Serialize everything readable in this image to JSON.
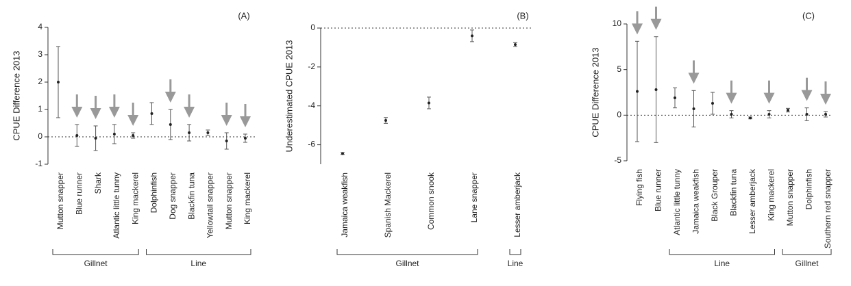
{
  "chart_data": [
    {
      "type": "errorpoint",
      "label": "(A)",
      "y_label": "CPUE Difference 2013",
      "categories": [
        "Mutton snapper",
        "Blue runner",
        "Shark",
        "Atlantic little tunny",
        "King mackerel",
        "Dolphinfish",
        "Dog snapper",
        "Blackfin tuna",
        "Yellowtail snapper",
        "Mutton snapper",
        "King mackerel"
      ],
      "values": [
        2.0,
        0.05,
        -0.05,
        0.1,
        0.05,
        0.85,
        0.45,
        0.15,
        0.15,
        -0.15,
        -0.05
      ],
      "errors": [
        1.3,
        0.4,
        0.45,
        0.35,
        0.1,
        0.4,
        0.55,
        0.3,
        0.1,
        0.3,
        0.15
      ],
      "arrows": [
        false,
        true,
        true,
        true,
        true,
        false,
        true,
        true,
        false,
        true,
        true
      ],
      "groups": [
        {
          "name": "Gillnet",
          "from": 0,
          "to": 4
        },
        {
          "name": "Line",
          "from": 5,
          "to": 10
        }
      ],
      "reference_line": 0,
      "color": "#222",
      "ylim": [
        -1,
        4
      ],
      "yticks": [
        -1,
        0,
        1,
        2,
        3,
        4
      ]
    },
    {
      "type": "errorpoint",
      "label": "(B)",
      "y_label": "Underestimated CPUE 2013",
      "categories": [
        "Jamaica weakfish",
        "Spanish Mackerel",
        "Common snook",
        "Lane snapper",
        "Lesser amberjack"
      ],
      "values": [
        -6.45,
        -4.75,
        -3.85,
        -0.4,
        -0.85
      ],
      "errors": [
        0.05,
        0.15,
        0.3,
        0.3,
        0.1
      ],
      "arrows": [
        false,
        false,
        false,
        false,
        false
      ],
      "groups": [
        {
          "name": "Gillnet",
          "from": 0,
          "to": 3
        },
        {
          "name": "Line",
          "from": 4,
          "to": 4
        }
      ],
      "reference_line": 0,
      "color": "#222",
      "ylim": [
        -7,
        0
      ],
      "yticks": [
        -6,
        -4,
        -2,
        0
      ]
    },
    {
      "type": "errorpoint",
      "label": "(C)",
      "y_label": "CPUE Difference 2013",
      "categories": [
        "Flying fish",
        "Blue runner",
        "Atlantic little tunny",
        "Jamaica weakfish",
        "Black Grouper",
        "Blackfin tuna",
        "Lesser amberjack",
        "King mackerel",
        "Mutton snapper",
        "Dolphinfish",
        "Southern red snapper"
      ],
      "values": [
        2.6,
        2.8,
        1.9,
        0.7,
        1.3,
        0.1,
        -0.3,
        0.1,
        0.55,
        0.1,
        0.1
      ],
      "errors": [
        5.5,
        5.8,
        1.1,
        2.0,
        1.2,
        0.4,
        0.1,
        0.4,
        0.2,
        0.7,
        0.3
      ],
      "arrows": [
        true,
        true,
        false,
        true,
        false,
        true,
        false,
        true,
        false,
        true,
        true
      ],
      "groups": [
        {
          "name": "Line",
          "from": 2,
          "to": 7
        },
        {
          "name": "Gillnet",
          "from": 8,
          "to": 10
        }
      ],
      "reference_line": 0,
      "color": "#222",
      "ylim": [
        -5,
        10
      ],
      "yticks": [
        -5,
        0,
        5,
        10
      ]
    }
  ]
}
